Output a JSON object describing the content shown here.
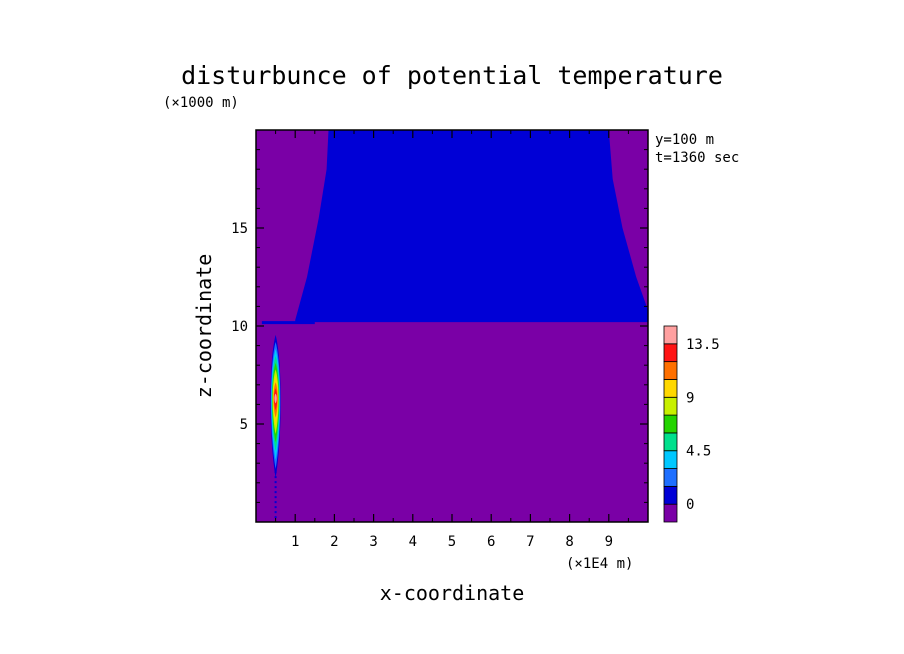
{
  "chart_data": {
    "type": "heatmap",
    "title": "disturbunce of potential temperature",
    "xlabel": "x-coordinate",
    "ylabel": "z-coordinate",
    "x_unit": "(×1E4 m)",
    "y_unit": "(×1000 m)",
    "annotations": [
      "y=100 m",
      "t=1360 sec"
    ],
    "xlim": [
      0,
      10
    ],
    "ylim": [
      0,
      20
    ],
    "x_ticks": [
      1,
      2,
      3,
      4,
      5,
      6,
      7,
      8,
      9
    ],
    "y_ticks": [
      5,
      10,
      15
    ],
    "field": {
      "background_level": "below 0",
      "stratosphere_region": {
        "z_bottom": 10.2,
        "z_top": 20,
        "left_boundary": [
          [
            1.0,
            10.3
          ],
          [
            1.3,
            12.5
          ],
          [
            1.6,
            15.5
          ],
          [
            1.8,
            18.0
          ],
          [
            1.85,
            20.0
          ]
        ],
        "right_boundary": [
          [
            9.0,
            20.0
          ],
          [
            9.1,
            17.5
          ],
          [
            9.35,
            15.0
          ],
          [
            9.7,
            12.5
          ],
          [
            10.0,
            10.8
          ]
        ],
        "level": "0 to 1.5"
      },
      "plume": {
        "x_center": 0.5,
        "z_center": 6.3,
        "z_top": 9.3,
        "z_bottom": 0.2,
        "max_value": 13.5
      }
    },
    "colorbar": {
      "levels": [
        0,
        1.5,
        3,
        4.5,
        6,
        7.5,
        9,
        10.5,
        12,
        13.5
      ],
      "labels": [
        "0",
        "4.5",
        "9",
        "13.5"
      ],
      "label_values": [
        0,
        4.5,
        9,
        13.5
      ],
      "colors": [
        "#7a00a6",
        "#0000d6",
        "#1e6fff",
        "#00c8ff",
        "#00e08c",
        "#24d400",
        "#c8f000",
        "#ffd800",
        "#ff7000",
        "#ff1414",
        "#ffa0a0"
      ]
    }
  }
}
